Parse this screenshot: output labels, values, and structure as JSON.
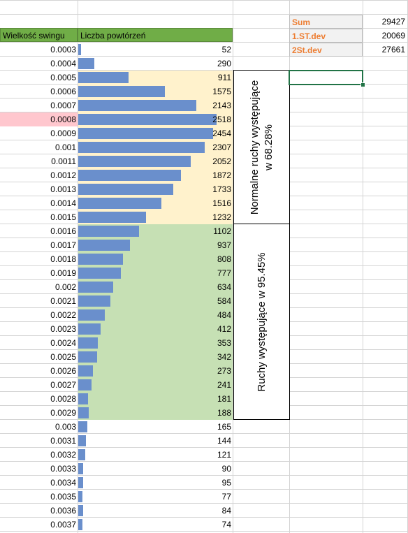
{
  "header": {
    "col_a": "Wielkość swingu",
    "col_b": "Liczba powtórzeń"
  },
  "colors": {
    "header": "#70ad47",
    "bar": "#6a8fcc",
    "band68": "#fff2cc",
    "band95": "#c6e0b4",
    "highlight": "#ffc7ce",
    "stat_label": "#ed7d31"
  },
  "rows": [
    {
      "size": "0.0003",
      "count": 52
    },
    {
      "size": "0.0004",
      "count": 290
    },
    {
      "size": "0.0005",
      "count": 911
    },
    {
      "size": "0.0006",
      "count": 1575
    },
    {
      "size": "0.0007",
      "count": 2143
    },
    {
      "size": "0.0008",
      "count": 2518
    },
    {
      "size": "0.0009",
      "count": 2454
    },
    {
      "size": "0.001",
      "count": 2307
    },
    {
      "size": "0.0011",
      "count": 2052
    },
    {
      "size": "0.0012",
      "count": 1872
    },
    {
      "size": "0.0013",
      "count": 1733
    },
    {
      "size": "0.0014",
      "count": 1516
    },
    {
      "size": "0.0015",
      "count": 1232
    },
    {
      "size": "0.0016",
      "count": 1102
    },
    {
      "size": "0.0017",
      "count": 937
    },
    {
      "size": "0.0018",
      "count": 808
    },
    {
      "size": "0.0019",
      "count": 777
    },
    {
      "size": "0.002",
      "count": 634
    },
    {
      "size": "0.0021",
      "count": 584
    },
    {
      "size": "0.0022",
      "count": 484
    },
    {
      "size": "0.0023",
      "count": 412
    },
    {
      "size": "0.0024",
      "count": 353
    },
    {
      "size": "0.0025",
      "count": 342
    },
    {
      "size": "0.0026",
      "count": 273
    },
    {
      "size": "0.0027",
      "count": 241
    },
    {
      "size": "0.0028",
      "count": 181
    },
    {
      "size": "0.0029",
      "count": 188
    },
    {
      "size": "0.003",
      "count": 165
    },
    {
      "size": "0.0031",
      "count": 144
    },
    {
      "size": "0.0032",
      "count": 121
    },
    {
      "size": "0.0033",
      "count": 90
    },
    {
      "size": "0.0034",
      "count": 95
    },
    {
      "size": "0.0035",
      "count": 77
    },
    {
      "size": "0.0036",
      "count": 84
    },
    {
      "size": "0.0037",
      "count": 74
    }
  ],
  "highlight_row": "0.0008",
  "band68_rows": [
    "0.0005",
    "0.0015"
  ],
  "band95_rows": [
    "0.0016",
    "0.0029"
  ],
  "max_count": 2518,
  "stats": [
    {
      "label": "Sum",
      "value": "29427"
    },
    {
      "label": "1.ST.dev",
      "value": "20069"
    },
    {
      "label": "2St.dev",
      "value": "27661"
    }
  ],
  "box1_text_line1": "Normalne ruchy występujące",
  "box1_text_line2": "w 68.28%",
  "box2_text": "Ruchy występujące w 95.45%"
}
